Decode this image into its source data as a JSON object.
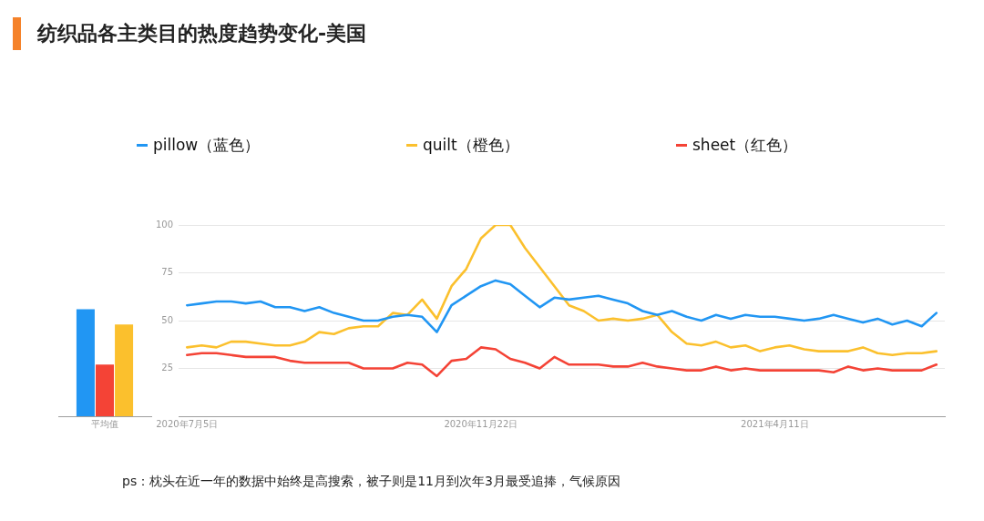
{
  "chart_data": [
    {
      "type": "bar",
      "categories": [
        "平均值"
      ],
      "ylim": [
        0,
        100
      ],
      "tick_labels": "x",
      "grid": false,
      "series": [
        {
          "color": "#2196f3",
          "values": [
            56
          ]
        },
        {
          "color": "#f44336",
          "values": [
            27
          ]
        },
        {
          "color": "#fbc02d",
          "values": [
            48
          ]
        }
      ]
    },
    {
      "type": "line",
      "title": "纺织品各主类目的热度趋势变化-美国",
      "annotations": [
        "ps：枕头在近一年的数据中始终是高搜索，被子则是11月到次年3月最受追捧，气候原因"
      ],
      "legend": "top",
      "grid": "y",
      "marker": "none",
      "line_style": "solid",
      "x": [
        "2020-07-05",
        "2020-07-12",
        "2020-07-19",
        "2020-07-26",
        "2020-08-02",
        "2020-08-09",
        "2020-08-16",
        "2020-08-23",
        "2020-08-30",
        "2020-09-06",
        "2020-09-13",
        "2020-09-20",
        "2020-09-27",
        "2020-10-04",
        "2020-10-11",
        "2020-10-18",
        "2020-10-25",
        "2020-11-01",
        "2020-11-08",
        "2020-11-15",
        "2020-11-22",
        "2020-11-29",
        "2020-12-06",
        "2020-12-13",
        "2020-12-20",
        "2020-12-27",
        "2021-01-03",
        "2021-01-10",
        "2021-01-17",
        "2021-01-24",
        "2021-01-31",
        "2021-02-07",
        "2021-02-14",
        "2021-02-21",
        "2021-02-28",
        "2021-03-07",
        "2021-03-14",
        "2021-03-21",
        "2021-03-28",
        "2021-04-04",
        "2021-04-11",
        "2021-04-18",
        "2021-04-25",
        "2021-05-02",
        "2021-05-09",
        "2021-05-16",
        "2021-05-23",
        "2021-05-30",
        "2021-06-06",
        "2021-06-13",
        "2021-06-20",
        "2021-06-27"
      ],
      "xlim": [
        "2020-07-01",
        "2021-07-01"
      ],
      "xticks": [
        {
          "value": "2020-07-05",
          "label": "2020年7月5日"
        },
        {
          "value": "2020-11-22",
          "label": "2020年11月22日"
        },
        {
          "value": "2021-04-11",
          "label": "2021年4月11日"
        }
      ],
      "ylim": [
        0,
        100
      ],
      "yticks": [
        25,
        50,
        75,
        100
      ],
      "series": [
        {
          "name": "pillow（蓝色）",
          "color": "#2196f3",
          "values": [
            58,
            59,
            60,
            60,
            59,
            60,
            57,
            57,
            55,
            57,
            54,
            52,
            50,
            50,
            52,
            53,
            52,
            44,
            58,
            63,
            68,
            71,
            69,
            63,
            57,
            62,
            61,
            62,
            63,
            61,
            59,
            55,
            53,
            55,
            52,
            50,
            53,
            51,
            53,
            52,
            52,
            51,
            50,
            51,
            53,
            51,
            49,
            51,
            48,
            50,
            47,
            54
          ]
        },
        {
          "name": "quilt（橙色）",
          "color": "#fbc02d",
          "values": [
            36,
            37,
            36,
            39,
            39,
            38,
            37,
            37,
            39,
            44,
            43,
            46,
            47,
            47,
            54,
            53,
            61,
            51,
            68,
            77,
            93,
            100,
            100,
            88,
            78,
            68,
            58,
            55,
            50,
            51,
            50,
            51,
            53,
            44,
            38,
            37,
            39,
            36,
            37,
            34,
            36,
            37,
            35,
            34,
            34,
            34,
            36,
            33,
            32,
            33,
            33,
            34
          ]
        },
        {
          "name": "sheet（红色）",
          "color": "#f44336",
          "values": [
            32,
            33,
            33,
            32,
            31,
            31,
            31,
            29,
            28,
            28,
            28,
            28,
            25,
            25,
            25,
            28,
            27,
            21,
            29,
            30,
            36,
            35,
            30,
            28,
            25,
            31,
            27,
            27,
            27,
            26,
            26,
            28,
            26,
            25,
            24,
            24,
            26,
            24,
            25,
            24,
            24,
            24,
            24,
            24,
            23,
            26,
            24,
            25,
            24,
            24,
            24,
            27
          ]
        }
      ]
    }
  ]
}
